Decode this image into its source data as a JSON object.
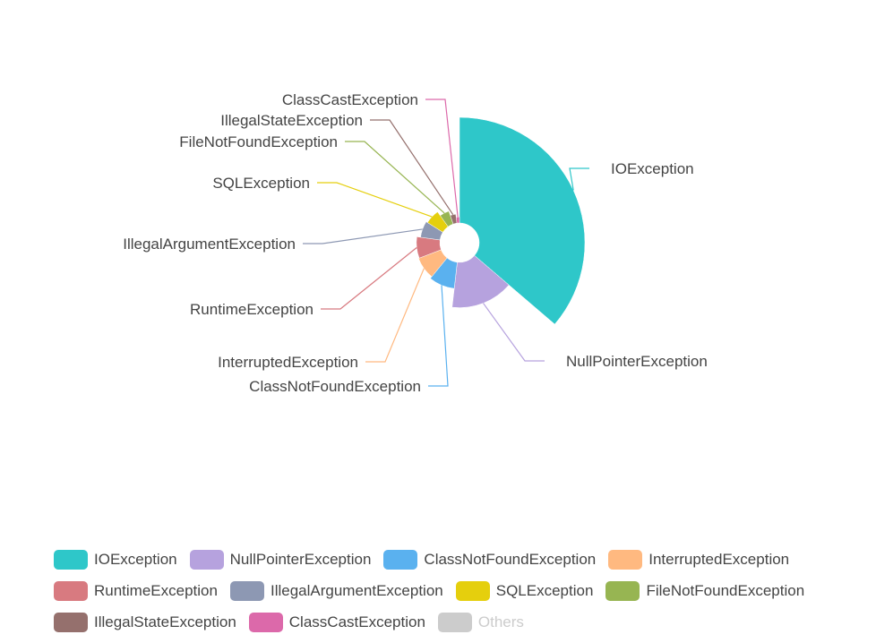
{
  "chart_data": {
    "type": "pie",
    "variant": "nightingale-rose-radius",
    "categories": [
      "IOException",
      "NullPointerException",
      "ClassNotFoundException",
      "InterruptedException",
      "RuntimeException",
      "IllegalArgumentException",
      "SQLException",
      "FileNotFoundException",
      "IllegalStateException",
      "ClassCastException"
    ],
    "values": [
      140,
      60,
      35,
      32,
      31,
      26,
      24,
      18,
      12,
      8
    ],
    "colors": [
      "#2ec7c9",
      "#b6a2de",
      "#5ab1ef",
      "#ffb980",
      "#d87a80",
      "#8d98b3",
      "#e5cf0d",
      "#97b552",
      "#95706d",
      "#dc69aa"
    ],
    "legend": {
      "position": "bottom",
      "rows": [
        [
          "IOException",
          "NullPointerException",
          "ClassNotFoundException",
          "InterruptedException"
        ],
        [
          "RuntimeException",
          "IllegalArgumentException",
          "SQLException",
          "FileNotFoundException"
        ],
        [
          "IllegalStateException",
          "ClassCastException",
          "Others"
        ]
      ],
      "inactive": [
        "Others"
      ],
      "others_color": "#cccccc"
    }
  }
}
